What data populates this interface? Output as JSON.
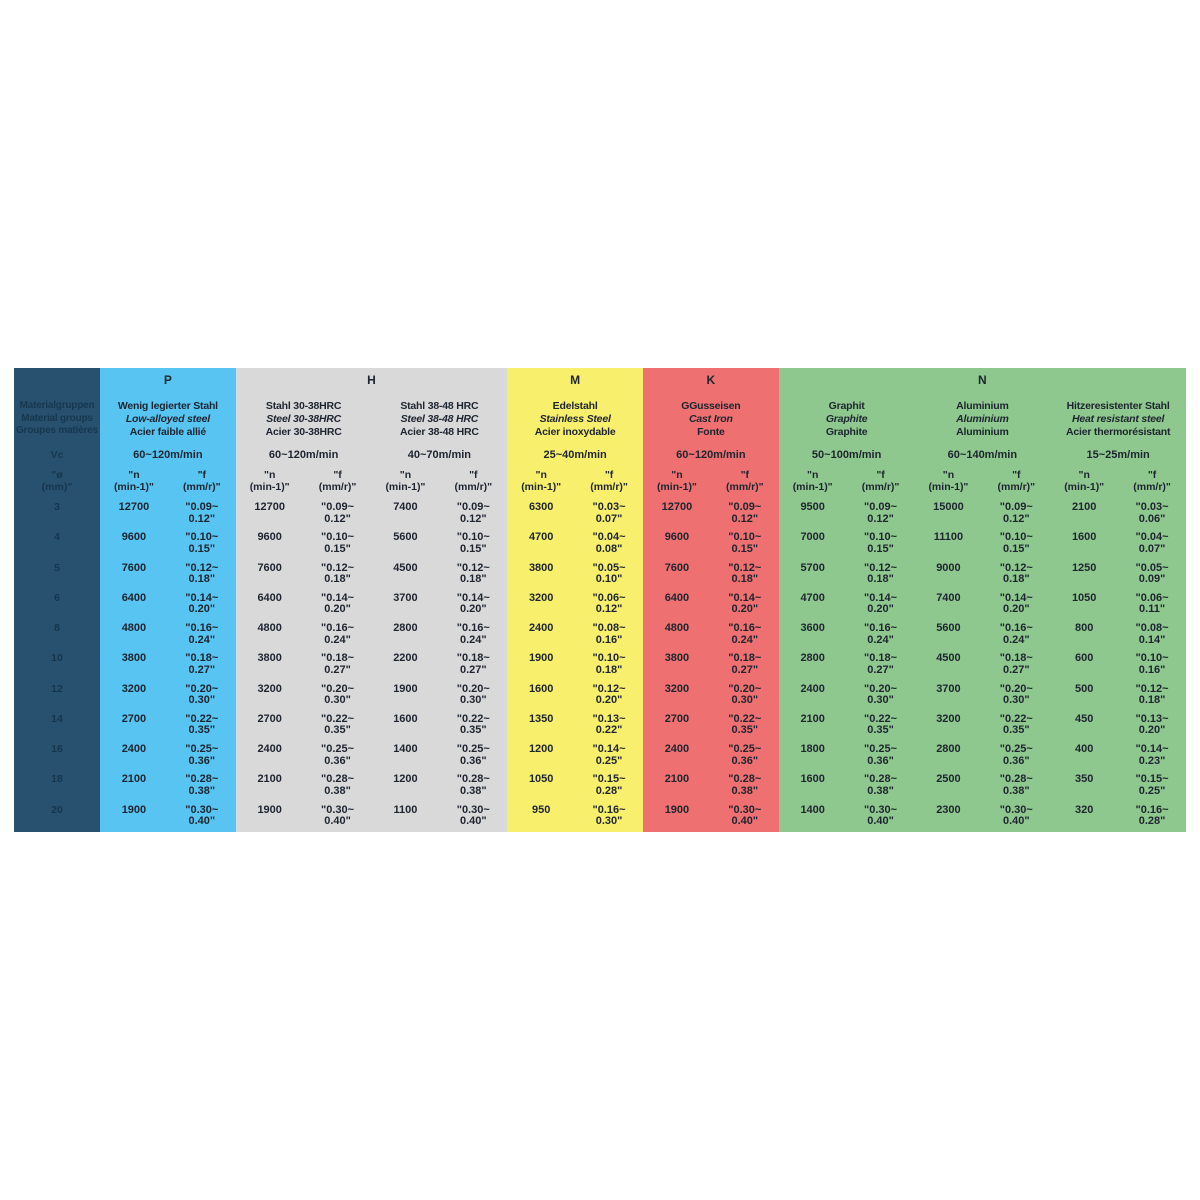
{
  "colors": {
    "header_column": "#27516f",
    "group_p": "#57c4f1",
    "group_h": "#d9d9d9",
    "group_m": "#f8ef6c",
    "group_k": "#ee7070",
    "group_n": "#8ec88e",
    "text": "#1e2530"
  },
  "table": {
    "corner": {
      "label_de": "Materialgruppen",
      "label_en": "Material groups",
      "label_fr": "Groupes matières",
      "vc_label": "Vc",
      "dia_label": "\"ø\n(mm)\""
    },
    "sub": {
      "n_label": "\"n\n(min-1)\"",
      "f_label": "\"f\n(mm/r)\""
    },
    "groups": [
      {
        "letter": "P",
        "pairs": [
          {
            "de": "Wenig legierter Stahl",
            "en": "Low-alloyed steel",
            "fr": "Acier faible allié",
            "vc": "60~120m/min"
          }
        ]
      },
      {
        "letter": "H",
        "pairs": [
          {
            "de": "Stahl 30-38HRC",
            "en": "Steel 30-38HRC",
            "fr": "Acier 30-38HRC",
            "vc": "60~120m/min"
          },
          {
            "de": "Stahl 38-48 HRC",
            "en": "Steel 38-48 HRC",
            "fr": "Acier 38-48 HRC",
            "vc": "40~70m/min"
          }
        ]
      },
      {
        "letter": "M",
        "pairs": [
          {
            "de": "Edelstahl",
            "en": "Stainless Steel",
            "fr": "Acier inoxydable",
            "vc": "25~40m/min"
          }
        ]
      },
      {
        "letter": "K",
        "pairs": [
          {
            "de": "GGusseisen",
            "en": "Cast Iron",
            "fr": "Fonte",
            "vc": "60~120m/min"
          }
        ]
      },
      {
        "letter": "N",
        "pairs": [
          {
            "de": "Graphit",
            "en": "Graphite",
            "fr": "Graphite",
            "vc": "50~100m/min"
          },
          {
            "de": "Aluminium",
            "en": "Aluminium",
            "fr": "Aluminium",
            "vc": "60~140m/min"
          },
          {
            "de": "Hitzeresistenter Stahl",
            "en": "Heat resistant steel",
            "fr": "Acier thermorésistant",
            "vc": "15~25m/min"
          }
        ]
      }
    ],
    "rows": [
      {
        "dia": "3",
        "cells": [
          "12700",
          "\"0.09~\n0.12\"",
          "12700",
          "\"0.09~\n0.12\"",
          "7400",
          "\"0.09~\n0.12\"",
          "6300",
          "\"0.03~\n0.07\"",
          "12700",
          "\"0.09~\n0.12\"",
          "9500",
          "\"0.09~\n0.12\"",
          "15000",
          "\"0.09~\n0.12\"",
          "2100",
          "\"0.03~\n0.06\""
        ]
      },
      {
        "dia": "4",
        "cells": [
          "9600",
          "\"0.10~\n0.15\"",
          "9600",
          "\"0.10~\n0.15\"",
          "5600",
          "\"0.10~\n0.15\"",
          "4700",
          "\"0.04~\n0.08\"",
          "9600",
          "\"0.10~\n0.15\"",
          "7000",
          "\"0.10~\n0.15\"",
          "11100",
          "\"0.10~\n0.15\"",
          "1600",
          "\"0.04~\n0.07\""
        ]
      },
      {
        "dia": "5",
        "cells": [
          "7600",
          "\"0.12~\n0.18\"",
          "7600",
          "\"0.12~\n0.18\"",
          "4500",
          "\"0.12~\n0.18\"",
          "3800",
          "\"0.05~\n0.10\"",
          "7600",
          "\"0.12~\n0.18\"",
          "5700",
          "\"0.12~\n0.18\"",
          "9000",
          "\"0.12~\n0.18\"",
          "1250",
          "\"0.05~\n0.09\""
        ]
      },
      {
        "dia": "6",
        "cells": [
          "6400",
          "\"0.14~\n0.20\"",
          "6400",
          "\"0.14~\n0.20\"",
          "3700",
          "\"0.14~\n0.20\"",
          "3200",
          "\"0.06~\n0.12\"",
          "6400",
          "\"0.14~\n0.20\"",
          "4700",
          "\"0.14~\n0.20\"",
          "7400",
          "\"0.14~\n0.20\"",
          "1050",
          "\"0.06~\n0.11\""
        ]
      },
      {
        "dia": "8",
        "cells": [
          "4800",
          "\"0.16~\n0.24\"",
          "4800",
          "\"0.16~\n0.24\"",
          "2800",
          "\"0.16~\n0.24\"",
          "2400",
          "\"0.08~\n0.16\"",
          "4800",
          "\"0.16~\n0.24\"",
          "3600",
          "\"0.16~\n0.24\"",
          "5600",
          "\"0.16~\n0.24\"",
          "800",
          "\"0.08~\n0.14\""
        ]
      },
      {
        "dia": "10",
        "cells": [
          "3800",
          "\"0.18~\n0.27\"",
          "3800",
          "\"0.18~\n0.27\"",
          "2200",
          "\"0.18~\n0.27\"",
          "1900",
          "\"0.10~\n0.18\"",
          "3800",
          "\"0.18~\n0.27\"",
          "2800",
          "\"0.18~\n0.27\"",
          "4500",
          "\"0.18~\n0.27\"",
          "600",
          "\"0.10~\n0.16\""
        ]
      },
      {
        "dia": "12",
        "cells": [
          "3200",
          "\"0.20~\n0.30\"",
          "3200",
          "\"0.20~\n0.30\"",
          "1900",
          "\"0.20~\n0.30\"",
          "1600",
          "\"0.12~\n0.20\"",
          "3200",
          "\"0.20~\n0.30\"",
          "2400",
          "\"0.20~\n0.30\"",
          "3700",
          "\"0.20~\n0.30\"",
          "500",
          "\"0.12~\n0.18\""
        ]
      },
      {
        "dia": "14",
        "cells": [
          "2700",
          "\"0.22~\n0.35\"",
          "2700",
          "\"0.22~\n0.35\"",
          "1600",
          "\"0.22~\n0.35\"",
          "1350",
          "\"0.13~\n0.22\"",
          "2700",
          "\"0.22~\n0.35\"",
          "2100",
          "\"0.22~\n0.35\"",
          "3200",
          "\"0.22~\n0.35\"",
          "450",
          "\"0.13~\n0.20\""
        ]
      },
      {
        "dia": "16",
        "cells": [
          "2400",
          "\"0.25~\n0.36\"",
          "2400",
          "\"0.25~\n0.36\"",
          "1400",
          "\"0.25~\n0.36\"",
          "1200",
          "\"0.14~\n0.25\"",
          "2400",
          "\"0.25~\n0.36\"",
          "1800",
          "\"0.25~\n0.36\"",
          "2800",
          "\"0.25~\n0.36\"",
          "400",
          "\"0.14~\n0.23\""
        ]
      },
      {
        "dia": "18",
        "cells": [
          "2100",
          "\"0.28~\n0.38\"",
          "2100",
          "\"0.28~\n0.38\"",
          "1200",
          "\"0.28~\n0.38\"",
          "1050",
          "\"0.15~\n0.28\"",
          "2100",
          "\"0.28~\n0.38\"",
          "1600",
          "\"0.28~\n0.38\"",
          "2500",
          "\"0.28~\n0.38\"",
          "350",
          "\"0.15~\n0.25\""
        ]
      },
      {
        "dia": "20",
        "cells": [
          "1900",
          "\"0.30~\n0.40\"",
          "1900",
          "\"0.30~\n0.40\"",
          "1100",
          "\"0.30~\n0.40\"",
          "950",
          "\"0.16~\n0.30\"",
          "1900",
          "\"0.30~\n0.40\"",
          "1400",
          "\"0.30~\n0.40\"",
          "2300",
          "\"0.30~\n0.40\"",
          "320",
          "\"0.16~\n0.28\""
        ]
      }
    ]
  }
}
